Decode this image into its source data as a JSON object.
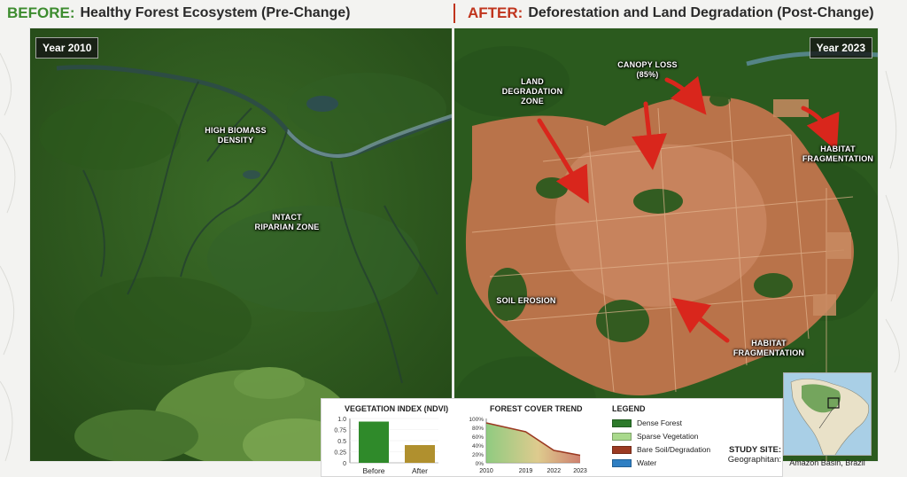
{
  "titles": {
    "before_key": "BEFORE:",
    "before_rest": "Healthy Forest Ecosystem (Pre-Change)",
    "after_key": "AFTER:",
    "after_rest": "Deforestation and Land Degradation (Post-Change)"
  },
  "panels": {
    "before_year": "Year 2010",
    "after_year": "Year 2023"
  },
  "before_labels": {
    "high_biomass": "HIGH BIOMASS\nDENSITY",
    "riparian": "INTACT\nRIPARIAN ZONE"
  },
  "after_labels": {
    "land_degradation": "LAND\nDEGRADATION\nZONE",
    "canopy_loss": "CANOPY LOSS\n(85%)",
    "habitat_frag_1": "HABITAT\nFRAGMENTATION",
    "soil_erosion": "SOIL EROSION",
    "habitat_frag_2": "HABITAT\nFRAGMENTATION"
  },
  "vegetation_chart": {
    "heading": "VEGETATION INDEX (NDVI)",
    "type": "bar",
    "categories": [
      "Before",
      "After"
    ],
    "values": [
      0.93,
      0.4
    ],
    "ylim": [
      0,
      1.0
    ],
    "ticks": [
      "1.0",
      "0.75",
      "0.5",
      "0.25",
      "0"
    ],
    "colors": [
      "#2f8a2a",
      "#b0902e"
    ]
  },
  "forest_chart": {
    "heading": "FOREST COVER TREND",
    "type": "area",
    "x": [
      "2010",
      "2019",
      "2022",
      "2023"
    ],
    "ticks": [
      "100%",
      "80%",
      "60%",
      "40%",
      "20%",
      "0%"
    ]
  },
  "legend": {
    "heading": "LEGEND",
    "items": [
      {
        "label": "Dense Forest",
        "color": "#2d7a2b"
      },
      {
        "label": "Sparse Vegetation",
        "color": "#a9d98c"
      },
      {
        "label": "Bare Soil/Degradation",
        "color": "#9b3a22"
      },
      {
        "label": "Water",
        "color": "#2f7fc3"
      }
    ]
  },
  "study_site": {
    "label": "STUDY SITE:",
    "sub": "Geographitan:",
    "caption": "Amazon Basin, Brazil"
  },
  "chart_data": [
    {
      "type": "bar",
      "title": "VEGETATION INDEX (NDVI)",
      "categories": [
        "Before",
        "After"
      ],
      "values": [
        0.93,
        0.4
      ],
      "ylim": [
        0,
        1.0
      ]
    },
    {
      "type": "area",
      "title": "FOREST COVER TREND",
      "x": [
        "2010",
        "2019",
        "2022",
        "2023"
      ],
      "values": [
        90,
        70,
        28,
        17
      ],
      "ylim": [
        0,
        100
      ]
    }
  ]
}
